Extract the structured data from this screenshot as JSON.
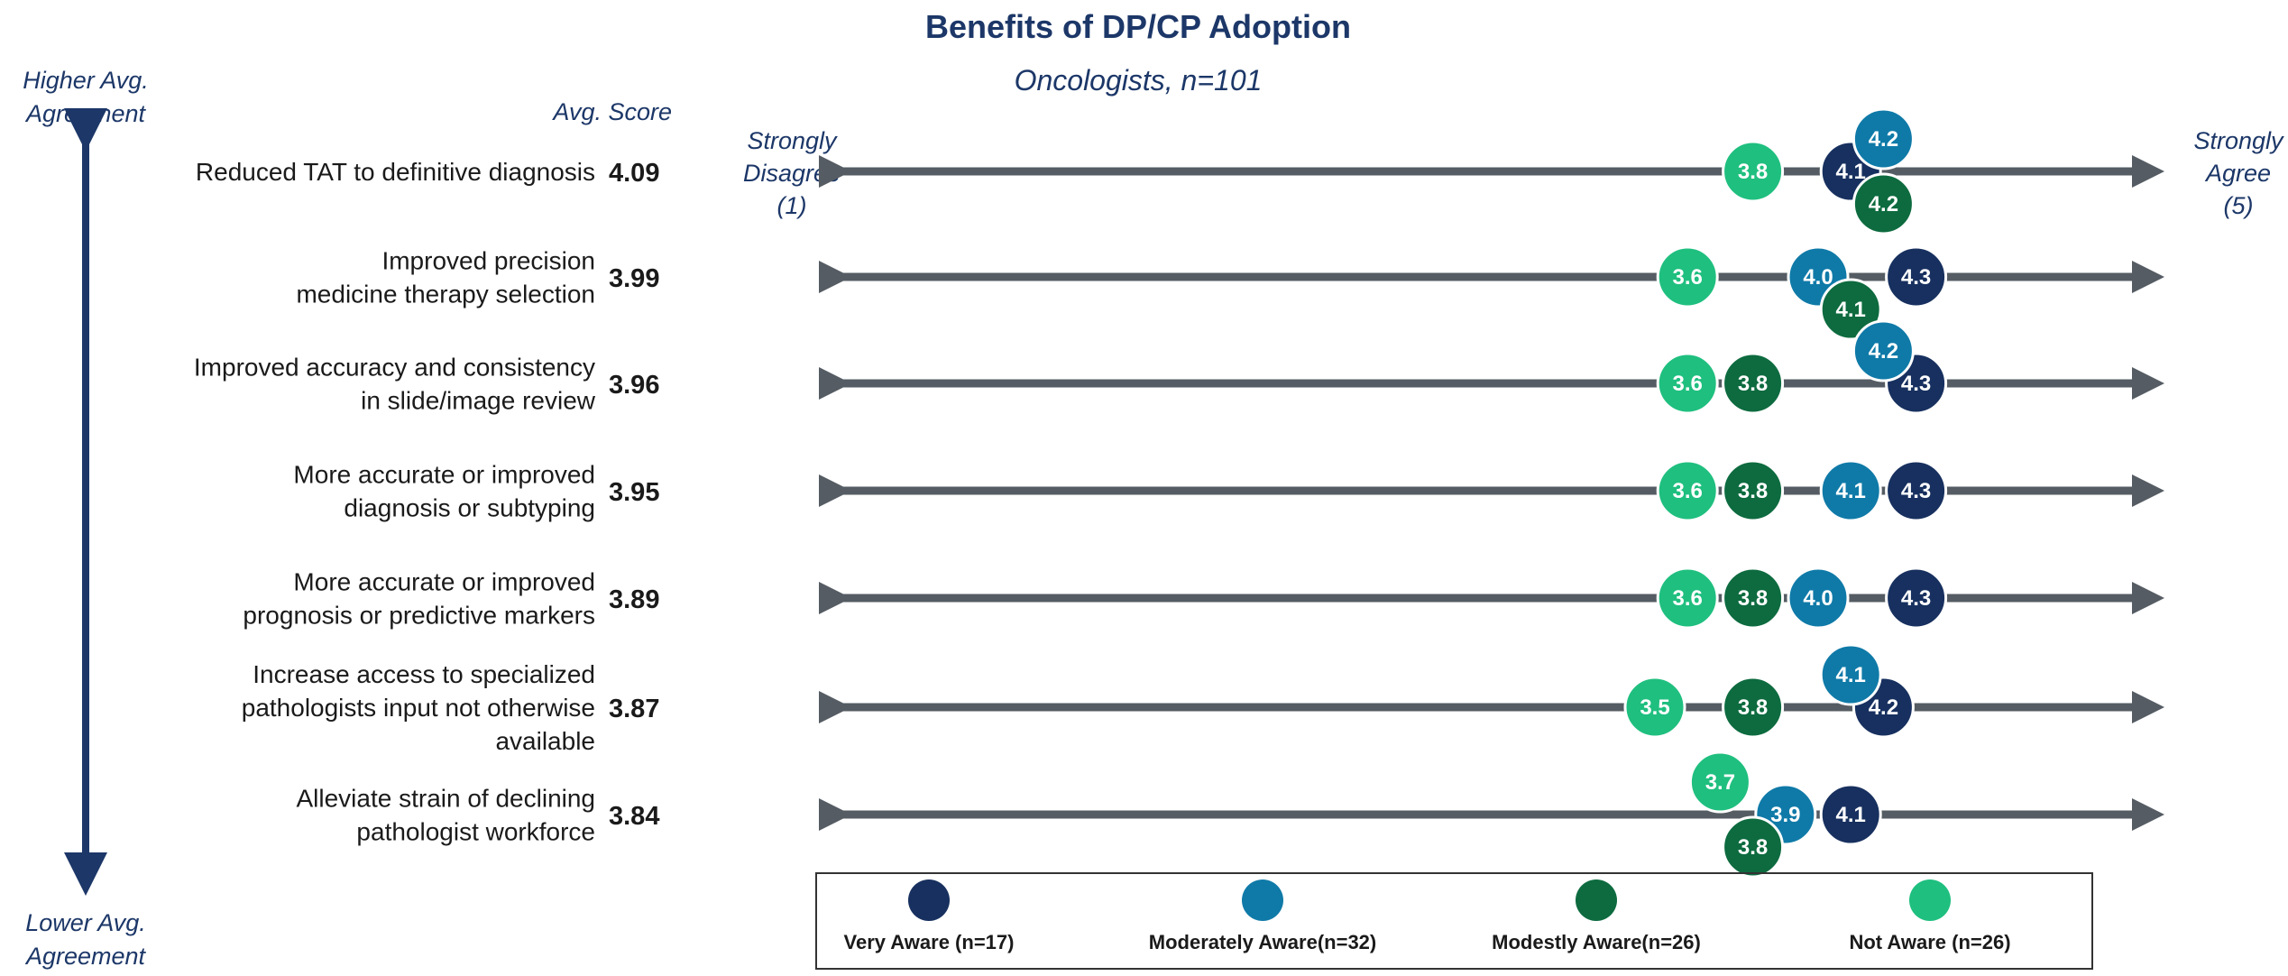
{
  "chart_data": {
    "type": "scatter",
    "title": "Benefits of DP/CP Adoption",
    "subtitle": "Oncologists, n=101",
    "y_axis_top_label": "Higher Avg. Agreement",
    "y_axis_bottom_label": "Lower Avg. Agreement",
    "avg_score_header": "Avg. Score",
    "scale_left_label": "Strongly Disagree (1)",
    "scale_right_label": "Strongly Agree (5)",
    "xlim": [
      1,
      5
    ],
    "legend_position": "bottom",
    "categories": [
      {
        "label": "Reduced TAT to definitive diagnosis",
        "avg": "4.09"
      },
      {
        "label": "Improved precision medicine therapy selection",
        "avg": "3.99"
      },
      {
        "label": "Improved accuracy and consistency in slide/image review",
        "avg": "3.96"
      },
      {
        "label": "More accurate or improved diagnosis or subtyping",
        "avg": "3.95"
      },
      {
        "label": "More accurate or improved prognosis or predictive markers",
        "avg": "3.89"
      },
      {
        "label": "Increase access to specialized pathologists input not otherwise available",
        "avg": "3.87"
      },
      {
        "label": "Alleviate strain of declining pathologist workforce",
        "avg": "3.84"
      }
    ],
    "series": [
      {
        "name": "Very Aware (n=17)",
        "color": "#17305f",
        "values": [
          4.1,
          4.3,
          4.3,
          4.3,
          4.3,
          4.2,
          4.1
        ]
      },
      {
        "name": "Moderately Aware(n=32)",
        "color": "#0f7aa8",
        "values": [
          4.2,
          4.0,
          4.2,
          4.1,
          4.0,
          4.1,
          3.9
        ]
      },
      {
        "name": "Modestly Aware(n=26)",
        "color": "#0d6b3f",
        "values": [
          4.2,
          4.1,
          3.8,
          3.8,
          3.8,
          3.8,
          3.8
        ]
      },
      {
        "name": "Not Aware (n=26)",
        "color": "#1fbf7f",
        "values": [
          3.8,
          3.6,
          3.6,
          3.6,
          3.6,
          3.5,
          3.7
        ]
      }
    ]
  }
}
